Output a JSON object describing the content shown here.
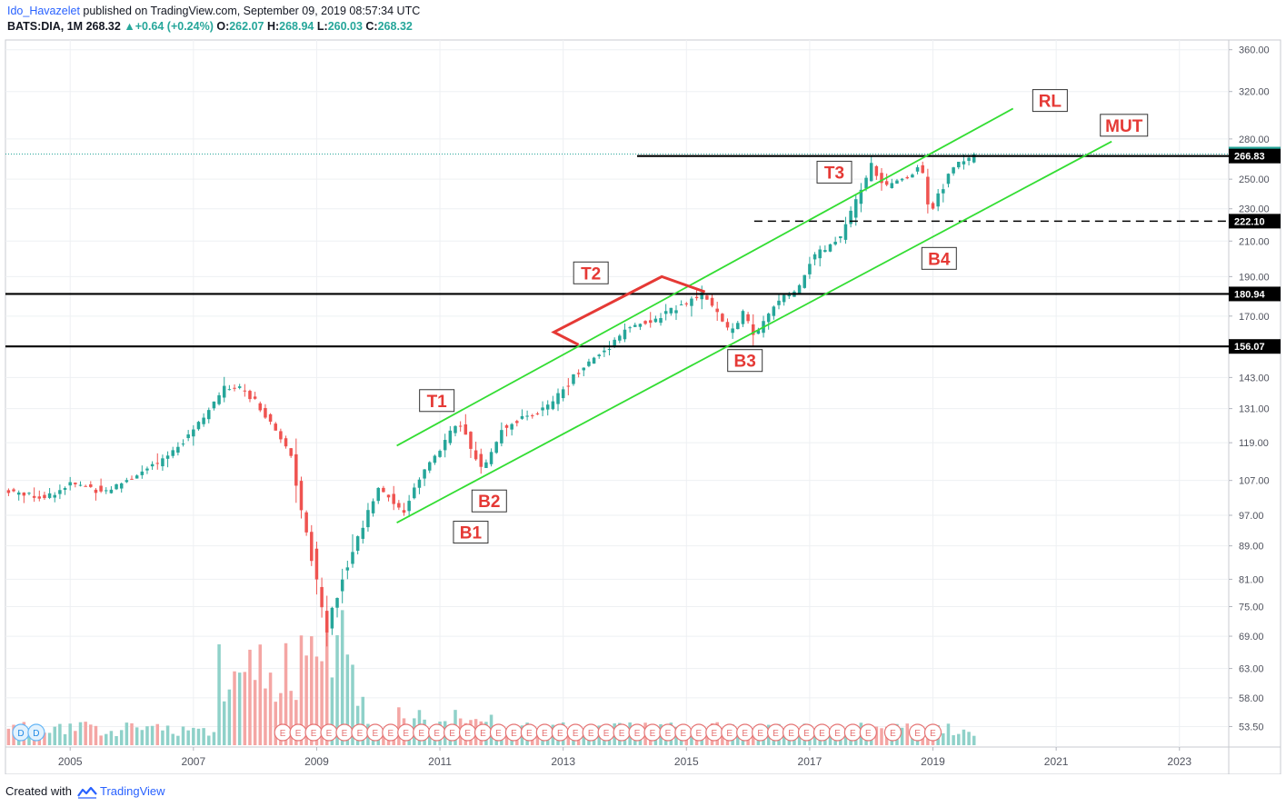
{
  "header": {
    "author": "Ido_Havazelet",
    "published": "published on TradingView.com, September 09, 2019 08:57:34 UTC",
    "symbol": "BATS:DIA, 1M",
    "last": "268.32",
    "change_arrow": "▲",
    "change": "+0.64 (+0.24%)",
    "o_label": "O:",
    "o_value": "262.07",
    "h_label": "H:",
    "h_value": "268.94",
    "l_label": "L:",
    "l_value": "260.03",
    "c_label": "C:",
    "c_value": "268.32"
  },
  "footer": {
    "created_with": "Created with",
    "brand": "TradingView",
    "logo_icon": "tradingview-logo-icon"
  },
  "colors": {
    "up": "#26a69a",
    "down": "#ef5350",
    "up_volume": "#8fd1c9",
    "down_volume": "#f4a6a4",
    "channel": "#33dd33",
    "annotation": "#e53935",
    "level": "#000000"
  },
  "chart_data": {
    "type": "candlestick",
    "symbol": "BATS:DIA",
    "interval": "1M",
    "y_scale": "log",
    "ylim": [
      50.5,
      370
    ],
    "y_ticks": [
      360,
      320,
      280,
      250,
      230,
      210,
      190,
      170,
      156.07,
      143,
      131,
      119,
      107,
      97,
      89,
      81,
      75,
      69,
      63,
      58,
      53.5
    ],
    "y_tick_labels": [
      "360.00",
      "320.00",
      "280.00",
      "250.00",
      "230.00",
      "210.00",
      "190.00",
      "170.00",
      "",
      "143.00",
      "131.00",
      "119.00",
      "107.00",
      "97.00",
      "89.00",
      "81.00",
      "75.00",
      "69.00",
      "63.00",
      "58.00",
      "53.50"
    ],
    "xlim": [
      2003.95,
      2023.8
    ],
    "x_ticks": [
      2005,
      2007,
      2009,
      2011,
      2013,
      2015,
      2017,
      2019,
      2021,
      2023
    ],
    "x_tick_labels": [
      "2005",
      "2007",
      "2009",
      "2011",
      "2013",
      "2015",
      "2017",
      "2019",
      "2021",
      "2023"
    ],
    "grid": true,
    "price_anchors": [
      [
        2004.0,
        104
      ],
      [
        2004.6,
        102
      ],
      [
        2005.0,
        106
      ],
      [
        2005.6,
        104
      ],
      [
        2006.0,
        108
      ],
      [
        2006.5,
        113
      ],
      [
        2007.0,
        124
      ],
      [
        2007.5,
        138
      ],
      [
        2007.8,
        139
      ],
      [
        2008.2,
        128
      ],
      [
        2008.6,
        114
      ],
      [
        2008.9,
        88
      ],
      [
        2009.15,
        70
      ],
      [
        2009.5,
        85
      ],
      [
        2010.0,
        105
      ],
      [
        2010.4,
        98
      ],
      [
        2010.8,
        112
      ],
      [
        2011.3,
        126
      ],
      [
        2011.7,
        110
      ],
      [
        2012.0,
        124
      ],
      [
        2012.4,
        128
      ],
      [
        2012.8,
        132
      ],
      [
        2013.2,
        145
      ],
      [
        2013.7,
        155
      ],
      [
        2014.0,
        164
      ],
      [
        2014.5,
        168
      ],
      [
        2014.9,
        176
      ],
      [
        2015.3,
        180
      ],
      [
        2015.7,
        162
      ],
      [
        2015.95,
        172
      ],
      [
        2016.1,
        160
      ],
      [
        2016.5,
        178
      ],
      [
        2016.8,
        182
      ],
      [
        2017.0,
        198
      ],
      [
        2017.5,
        212
      ],
      [
        2018.0,
        260
      ],
      [
        2018.2,
        244
      ],
      [
        2018.6,
        252
      ],
      [
        2018.8,
        262
      ],
      [
        2018.95,
        228
      ],
      [
        2019.3,
        258
      ],
      [
        2019.55,
        266
      ],
      [
        2019.7,
        268.32
      ]
    ],
    "last_price": 268.32,
    "levels": [
      {
        "price": 268.32,
        "label": "268.32",
        "style": "dotted",
        "color": "#26a69a"
      },
      {
        "price": 266.83,
        "label": "266.83",
        "style": "solid",
        "x_start": 2014.2
      },
      {
        "price": 222.1,
        "label": "222.10",
        "style": "dashed",
        "x_start": 2016.1
      },
      {
        "price": 180.94,
        "label": "180.94",
        "style": "solid"
      },
      {
        "price": 156.07,
        "label": "156.07",
        "style": "solid"
      }
    ],
    "channels": [
      {
        "x": [
          2010.3,
          2020.3
        ],
        "y": [
          118,
          305
        ]
      },
      {
        "x": [
          2010.3,
          2021.9
        ],
        "y": [
          95,
          278
        ]
      }
    ],
    "t2_polyline": {
      "x": [
        2012.85,
        2013.25,
        2012.85,
        2014.6,
        2015.3
      ],
      "y": [
        162.5,
        156.8,
        162.5,
        190,
        182
      ]
    },
    "labels": [
      {
        "text": "T1",
        "x": 2010.95,
        "y": 134
      },
      {
        "text": "B1",
        "x": 2011.5,
        "y": 92.5
      },
      {
        "text": "B2",
        "x": 2011.8,
        "y": 101
      },
      {
        "text": "T2",
        "x": 2013.45,
        "y": 192
      },
      {
        "text": "B3",
        "x": 2015.95,
        "y": 150
      },
      {
        "text": "T3",
        "x": 2017.4,
        "y": 255
      },
      {
        "text": "B4",
        "x": 2019.1,
        "y": 200
      },
      {
        "text": "RL",
        "x": 2020.9,
        "y": 312
      },
      {
        "text": "MUT",
        "x": 2022.1,
        "y": 291
      }
    ],
    "earnings_marker_text": "E",
    "dividend_marker_text": "D",
    "earnings_x": [
      2008.45,
      2008.7,
      2008.95,
      2009.2,
      2009.45,
      2009.7,
      2009.95,
      2010.2,
      2010.45,
      2010.7,
      2010.95,
      2011.2,
      2011.45,
      2011.7,
      2011.95,
      2012.2,
      2012.45,
      2012.7,
      2012.95,
      2013.2,
      2013.45,
      2013.7,
      2013.95,
      2014.2,
      2014.45,
      2014.7,
      2014.95,
      2015.2,
      2015.45,
      2015.7,
      2015.95,
      2016.2,
      2016.45,
      2016.7,
      2016.95,
      2017.2,
      2017.45,
      2017.7,
      2017.95,
      2018.35,
      2018.75,
      2019.0
    ],
    "dividend_x": [
      2004.2,
      2004.45
    ]
  }
}
